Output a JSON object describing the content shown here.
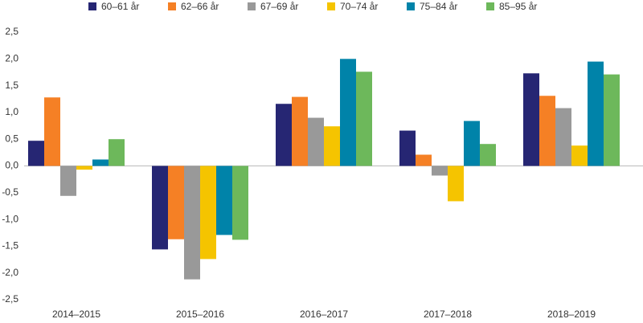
{
  "chart_data": {
    "type": "bar",
    "categories": [
      "2014–2015",
      "2015–2016",
      "2016–2017",
      "2017–2018",
      "2018–2019"
    ],
    "series": [
      {
        "name": "60–61 år",
        "color": "#262673",
        "values": [
          0.47,
          -1.56,
          1.16,
          0.66,
          1.73
        ]
      },
      {
        "name": "62–66 år",
        "color": "#f58025",
        "values": [
          1.28,
          -1.37,
          1.29,
          0.21,
          1.31
        ]
      },
      {
        "name": "67–69 år",
        "color": "#999999",
        "values": [
          -0.56,
          -2.12,
          0.9,
          -0.18,
          1.08
        ]
      },
      {
        "name": "70–74 år",
        "color": "#f5c400",
        "values": [
          -0.07,
          -1.74,
          0.74,
          -0.66,
          0.38
        ]
      },
      {
        "name": "75–84 år",
        "color": "#0083a9",
        "values": [
          0.12,
          -1.29,
          2.0,
          0.84,
          1.95
        ]
      },
      {
        "name": "85–95 år",
        "color": "#6db85b",
        "values": [
          0.5,
          -1.38,
          1.76,
          0.41,
          1.71
        ]
      }
    ],
    "ylim": [
      -2.5,
      2.5
    ],
    "yticks": [
      {
        "value": -2.5,
        "label": "-2,5"
      },
      {
        "value": -2.0,
        "label": "-2,0"
      },
      {
        "value": -1.5,
        "label": "-1,5"
      },
      {
        "value": -1.0,
        "label": "-1,0"
      },
      {
        "value": -0.5,
        "label": "-0,5"
      },
      {
        "value": 0,
        "label": "0,0"
      },
      {
        "value": 0.5,
        "label": "0,5"
      },
      {
        "value": 1.0,
        "label": "1,0"
      },
      {
        "value": 1.5,
        "label": "1,5"
      },
      {
        "value": 2.0,
        "label": "2,0"
      },
      {
        "value": 2.5,
        "label": "2,5"
      }
    ],
    "grid": false,
    "legend": "top"
  }
}
